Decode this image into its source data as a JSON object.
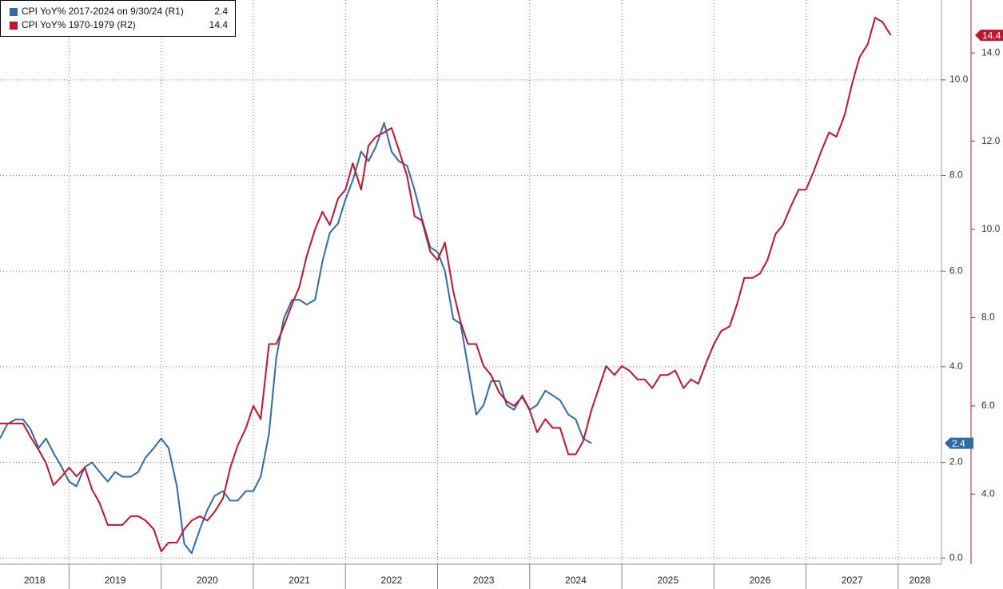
{
  "chart_data": {
    "type": "line",
    "x": [
      2018.25,
      2018.33,
      2018.42,
      2018.5,
      2018.58,
      2018.67,
      2018.75,
      2018.83,
      2018.92,
      2019.0,
      2019.08,
      2019.17,
      2019.25,
      2019.33,
      2019.42,
      2019.5,
      2019.58,
      2019.67,
      2019.75,
      2019.83,
      2019.92,
      2020.0,
      2020.08,
      2020.17,
      2020.25,
      2020.33,
      2020.42,
      2020.5,
      2020.58,
      2020.67,
      2020.75,
      2020.83,
      2020.92,
      2021.0,
      2021.08,
      2021.17,
      2021.25,
      2021.33,
      2021.42,
      2021.5,
      2021.58,
      2021.67,
      2021.75,
      2021.83,
      2021.92,
      2022.0,
      2022.08,
      2022.17,
      2022.25,
      2022.33,
      2022.42,
      2022.5,
      2022.58,
      2022.67,
      2022.75,
      2022.83,
      2022.92,
      2023.0,
      2023.08,
      2023.17,
      2023.25,
      2023.33,
      2023.42,
      2023.5,
      2023.58,
      2023.67,
      2023.75,
      2023.83,
      2023.92,
      2024.0,
      2024.08,
      2024.17,
      2024.25,
      2024.33,
      2024.42,
      2024.5,
      2024.58,
      2024.67,
      2024.75,
      2024.83,
      2024.92,
      2025.0,
      2025.08,
      2025.17,
      2025.25,
      2025.33,
      2025.42,
      2025.5,
      2025.58,
      2025.67,
      2025.75,
      2025.83,
      2025.92,
      2026.0,
      2026.08,
      2026.17,
      2026.25,
      2026.33,
      2026.42,
      2026.5,
      2026.58,
      2026.67,
      2026.75,
      2026.83,
      2026.92,
      2027.0,
      2027.08,
      2027.17,
      2027.25,
      2027.33,
      2027.42,
      2027.5,
      2027.58,
      2027.67,
      2027.75,
      2027.83,
      2027.92
    ],
    "series": [
      {
        "name": "CPI YoY% 2017-2024 on 9/30/24 (R1)",
        "color": "#2f6ba5",
        "axis": "y",
        "values": [
          2.5,
          2.8,
          2.9,
          2.9,
          2.7,
          2.3,
          2.5,
          2.2,
          1.9,
          1.6,
          1.5,
          1.9,
          2.0,
          1.8,
          1.6,
          1.8,
          1.7,
          1.7,
          1.8,
          2.1,
          2.3,
          2.5,
          2.3,
          1.5,
          0.3,
          0.1,
          0.6,
          1.0,
          1.3,
          1.4,
          1.2,
          1.2,
          1.4,
          1.4,
          1.7,
          2.6,
          4.2,
          5.0,
          5.4,
          5.4,
          5.3,
          5.4,
          6.2,
          6.8,
          7.0,
          7.5,
          7.9,
          8.5,
          8.3,
          8.6,
          9.1,
          8.5,
          8.3,
          8.2,
          7.7,
          7.1,
          6.5,
          6.4,
          6.0,
          5.0,
          4.9,
          4.0,
          3.0,
          3.2,
          3.7,
          3.7,
          3.2,
          3.1,
          3.4,
          3.1,
          3.2,
          3.5,
          3.4,
          3.3,
          3.0,
          2.9,
          2.5,
          2.4,
          null,
          null,
          null,
          null,
          null,
          null,
          null,
          null,
          null,
          null,
          null,
          null,
          null,
          null,
          null,
          null,
          null,
          null,
          null,
          null,
          null,
          null,
          null,
          null,
          null,
          null,
          null,
          null,
          null,
          null,
          null,
          null,
          null,
          null,
          null,
          null,
          null,
          null,
          null
        ]
      },
      {
        "name": "CPI YoY% 1970-1979 (R2)",
        "color": "#c2132f",
        "axis": "y2",
        "values": [
          5.6,
          5.6,
          5.6,
          5.6,
          5.3,
          5.0,
          4.7,
          4.2,
          4.4,
          4.6,
          4.4,
          4.6,
          4.1,
          3.8,
          3.3,
          3.3,
          3.3,
          3.5,
          3.5,
          3.4,
          3.2,
          2.7,
          2.9,
          2.9,
          3.2,
          3.4,
          3.5,
          3.4,
          3.6,
          3.9,
          4.6,
          5.1,
          5.5,
          6.0,
          5.7,
          7.4,
          7.4,
          7.8,
          8.3,
          8.7,
          9.4,
          10.0,
          10.4,
          10.1,
          10.7,
          10.9,
          11.5,
          10.9,
          11.9,
          12.1,
          12.2,
          12.3,
          11.8,
          11.2,
          10.3,
          10.2,
          9.5,
          9.3,
          9.7,
          8.6,
          7.9,
          7.4,
          7.4,
          6.9,
          6.7,
          6.3,
          6.1,
          6.0,
          6.2,
          5.9,
          5.4,
          5.7,
          5.5,
          5.5,
          4.9,
          4.9,
          5.2,
          5.9,
          6.4,
          6.9,
          6.7,
          6.9,
          6.8,
          6.6,
          6.6,
          6.4,
          6.7,
          6.7,
          6.8,
          6.4,
          6.6,
          6.5,
          7.0,
          7.4,
          7.7,
          7.8,
          8.3,
          8.9,
          8.9,
          9.0,
          9.3,
          9.9,
          10.1,
          10.5,
          10.9,
          10.9,
          11.3,
          11.8,
          12.2,
          12.1,
          12.6,
          13.3,
          13.9,
          14.2,
          14.8,
          14.7,
          14.4
        ]
      }
    ],
    "xlim": [
      2018.25,
      2028.47
    ],
    "xticks": [
      2018,
      2019,
      2020,
      2021,
      2022,
      2023,
      2024,
      2025,
      2026,
      2027,
      2028
    ],
    "ylim": [
      -0.13,
      11.67
    ],
    "yticks": [
      {
        "value": 0,
        "label": "0.0"
      },
      {
        "value": 2,
        "label": "2.0"
      },
      {
        "value": 4,
        "label": "4.0"
      },
      {
        "value": 6,
        "label": "6.0"
      },
      {
        "value": 8,
        "label": "8.0"
      },
      {
        "value": 10,
        "label": "10.0"
      }
    ],
    "y2lim": [
      2.41,
      15.2
    ],
    "y2ticks": [
      {
        "value": 4,
        "label": "4.0"
      },
      {
        "value": 6,
        "label": "6.0"
      },
      {
        "value": 8,
        "label": "8.0"
      },
      {
        "value": 10,
        "label": "10.0"
      },
      {
        "value": 12,
        "label": "12.0"
      },
      {
        "value": 14,
        "label": "14.0"
      }
    ],
    "grid": true,
    "legend": "upper left"
  }
}
